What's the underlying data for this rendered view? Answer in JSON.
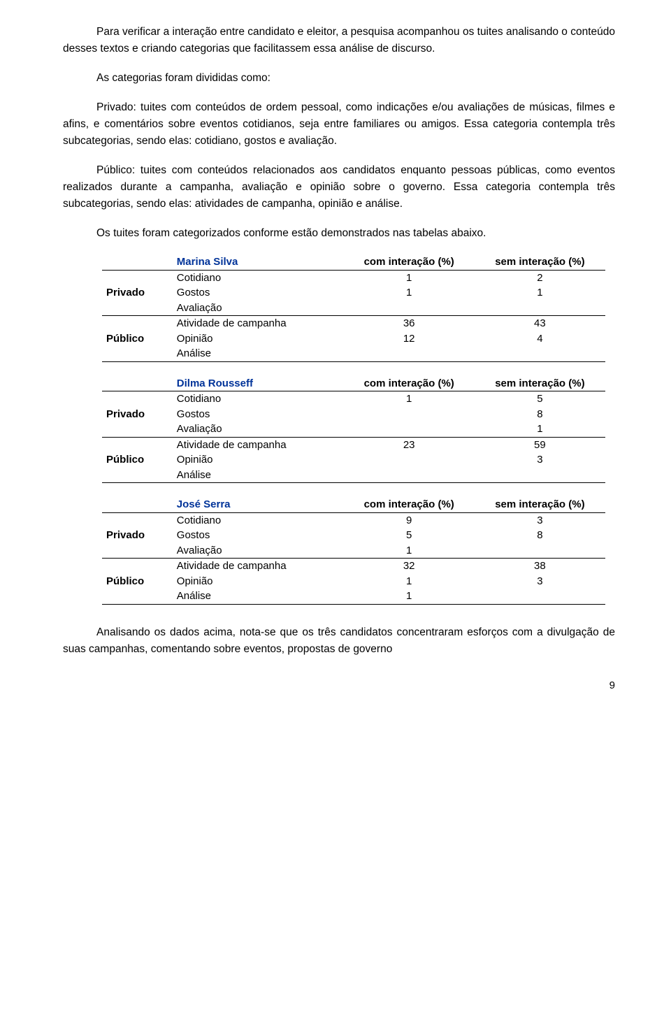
{
  "paragraphs": {
    "p1": "Para verificar a interação entre candidato e eleitor, a pesquisa acompanhou os tuites analisando o conteúdo desses textos e criando categorias que facilitassem essa análise de discurso.",
    "p2": "As categorias foram divididas como:",
    "p3": "Privado: tuites com conteúdos de ordem pessoal, como indicações e/ou avaliações de músicas, filmes e afins, e comentários sobre eventos cotidianos, seja entre familiares ou amigos. Essa categoria contempla três subcategorias, sendo elas: cotidiano, gostos e avaliação.",
    "p4": "Público: tuites com conteúdos relacionados aos candidatos enquanto pessoas públicas, como eventos realizados durante a campanha, avaliação e opinião sobre o governo. Essa categoria contempla três subcategorias, sendo elas: atividades de campanha, opinião e análise.",
    "p5": "Os tuites foram categorizados conforme estão demonstrados nas tabelas abaixo.",
    "p6": "Analisando os dados acima, nota-se que os três candidatos concentraram esforços com a divulgação de suas campanhas, comentando sobre eventos, propostas de governo"
  },
  "labels": {
    "com": "com interação (%)",
    "sem": "sem interação (%)",
    "privado": "Privado",
    "publico": "Público",
    "cotidiano": "Cotidiano",
    "gostos": "Gostos",
    "avaliacao": "Avaliação",
    "atividade": "Atividade de campanha",
    "opiniao": "Opinião",
    "analise": "Análise"
  },
  "tables": [
    {
      "name": "Marina Silva",
      "rows": [
        {
          "label": "Cotidiano",
          "com": "1",
          "sem": "2"
        },
        {
          "label": "Gostos",
          "com": "1",
          "sem": "1"
        },
        {
          "label": "Avaliação",
          "com": "",
          "sem": ""
        },
        {
          "label": "Atividade de campanha",
          "com": "36",
          "sem": "43"
        },
        {
          "label": "Opinião",
          "com": "12",
          "sem": "4"
        },
        {
          "label": "Análise",
          "com": "",
          "sem": ""
        }
      ]
    },
    {
      "name": "Dilma Rousseff",
      "rows": [
        {
          "label": "Cotidiano",
          "com": "1",
          "sem": "5"
        },
        {
          "label": "Gostos",
          "com": "",
          "sem": "8"
        },
        {
          "label": "Avaliação",
          "com": "",
          "sem": "1"
        },
        {
          "label": "Atividade de campanha",
          "com": "23",
          "sem": "59"
        },
        {
          "label": "Opinião",
          "com": "",
          "sem": "3"
        },
        {
          "label": "Análise",
          "com": "",
          "sem": ""
        }
      ]
    },
    {
      "name": "José Serra",
      "rows": [
        {
          "label": "Cotidiano",
          "com": "9",
          "sem": "3"
        },
        {
          "label": "Gostos",
          "com": "5",
          "sem": "8"
        },
        {
          "label": "Avaliação",
          "com": "1",
          "sem": ""
        },
        {
          "label": "Atividade de campanha",
          "com": "32",
          "sem": "38"
        },
        {
          "label": "Opinião",
          "com": "1",
          "sem": "3"
        },
        {
          "label": "Análise",
          "com": "1",
          "sem": ""
        }
      ]
    }
  ],
  "page_number": "9"
}
